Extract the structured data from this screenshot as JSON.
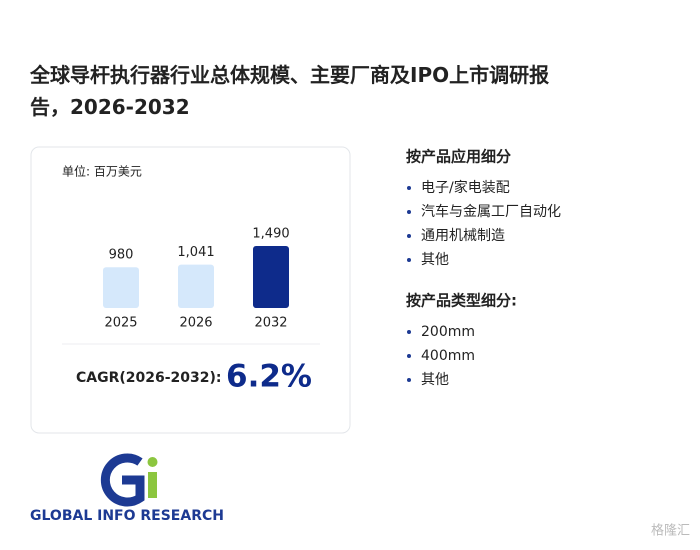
{
  "title": "全球导杆执行器行业总体规模、主要厂商及IPO上市调研报告，2026-2032",
  "chart_data": {
    "type": "bar",
    "unit_label": "单位: 百万美元",
    "categories": [
      "2025",
      "2026",
      "2032"
    ],
    "values": [
      980,
      1041,
      1490
    ],
    "value_labels": [
      "980",
      "1,041",
      "1,490"
    ],
    "colors": [
      "#d5e8fb",
      "#d5e8fb",
      "#0e2b8b"
    ]
  },
  "cagr": {
    "label": "CAGR(2026-2032):",
    "value": "6.2%"
  },
  "segments": [
    {
      "heading": "按产品应用细分",
      "items": [
        "电子/家电装配",
        "汽车与金属工厂自动化",
        "通用机械制造",
        "其他"
      ]
    },
    {
      "heading": "按产品类型细分:",
      "items": [
        "200mm",
        "400mm",
        "其他"
      ]
    }
  ],
  "logo": "GLOBAL INFO RESEARCH",
  "watermark": "格隆汇"
}
